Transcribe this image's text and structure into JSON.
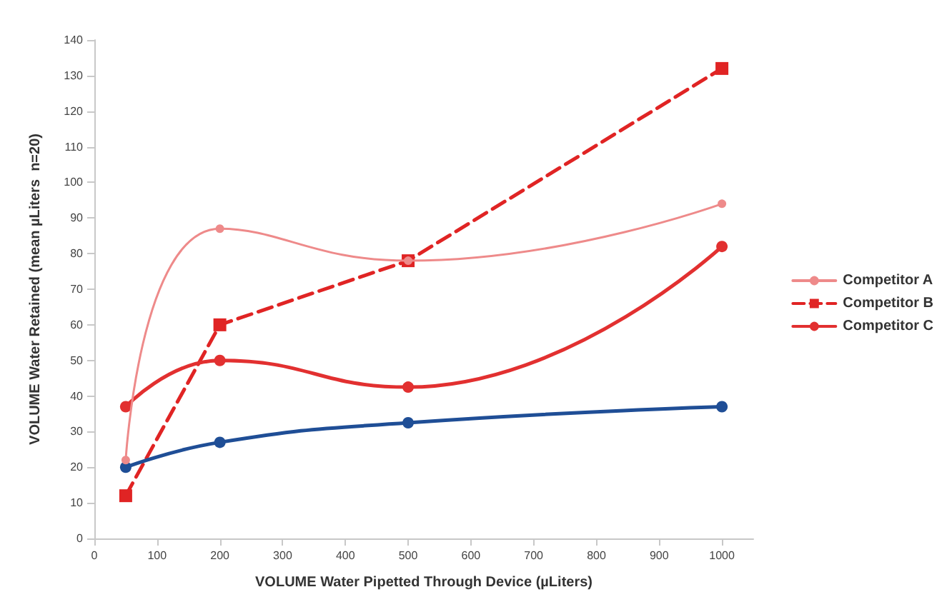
{
  "chart_data": {
    "type": "line",
    "xlabel": "VOLUME Water Pipetted Through Device (µLiters)",
    "ylabel": "VOLUME Water Retained (mean µLiters  n=20)",
    "x": [
      50,
      200,
      500,
      1000
    ],
    "series": [
      {
        "name": "Competitor A",
        "color": "#ee8a8a",
        "values": [
          22,
          87,
          78,
          94
        ],
        "marker": "circle",
        "line_style": "solid"
      },
      {
        "name": "Competitor B",
        "color": "#e02424",
        "values": [
          12,
          60,
          78,
          132
        ],
        "marker": "square",
        "line_style": "dashed"
      },
      {
        "name": "Competitor C",
        "color": "#e23030",
        "values": [
          37,
          50,
          42.5,
          82
        ],
        "marker": "circle",
        "line_style": "solid"
      },
      {
        "color": "#1f4e96",
        "values": [
          20,
          27,
          32.5,
          37
        ],
        "marker": "circle",
        "line_style": "solid"
      }
    ],
    "xlim": [
      0,
      1050
    ],
    "xticks": [
      0,
      100,
      200,
      300,
      400,
      500,
      600,
      700,
      800,
      900,
      1000
    ],
    "ylim": [
      0,
      140
    ],
    "yticks": [
      0,
      10,
      20,
      30,
      40,
      50,
      60,
      70,
      80,
      90,
      100,
      110,
      120,
      130,
      140
    ],
    "grid": false,
    "legend": "right"
  }
}
